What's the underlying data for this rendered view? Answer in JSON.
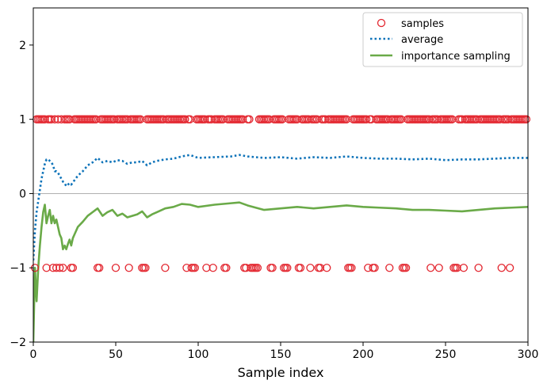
{
  "chart_data": {
    "type": "scatter",
    "title": "",
    "xlabel": "Sample index",
    "ylabel": "",
    "xlim": [
      0,
      300
    ],
    "ylim": [
      -2,
      2.5
    ],
    "xticks": [
      0,
      50,
      100,
      150,
      200,
      250,
      300
    ],
    "yticks": [
      -2,
      -1,
      0,
      1,
      2
    ],
    "grid": false,
    "hline": 0,
    "legend": {
      "position": "top-right",
      "entries": [
        {
          "label": "samples",
          "style": "circle-marker",
          "color": "#e3262f"
        },
        {
          "label": "average",
          "style": "dotted",
          "color": "#0e73b9"
        },
        {
          "label": "importance sampling",
          "style": "solid",
          "color": "#6aaa48"
        }
      ]
    },
    "series": [
      {
        "name": "samples",
        "kind": "markers",
        "color": "#e3262f",
        "points_at_plus_one": [
          2,
          3,
          4,
          5,
          6,
          7,
          9,
          10,
          11,
          13,
          15,
          17,
          19,
          20,
          21,
          22,
          25,
          26,
          27,
          28,
          29,
          30,
          31,
          32,
          33,
          34,
          35,
          36,
          37,
          38,
          41,
          42,
          43,
          44,
          45,
          46,
          47,
          48,
          49,
          51,
          52,
          53,
          54,
          55,
          56,
          57,
          59,
          60,
          61,
          62,
          63,
          64,
          65,
          69,
          70,
          71,
          72,
          73,
          74,
          75,
          76,
          77,
          78,
          79,
          81,
          82,
          83,
          84,
          85,
          86,
          87,
          88,
          89,
          90,
          91,
          92,
          94,
          95,
          99,
          100,
          101,
          102,
          103,
          104,
          106,
          107,
          108,
          110,
          111,
          112,
          113,
          114,
          115,
          118,
          119,
          120,
          121,
          122,
          123,
          124,
          125,
          126,
          127,
          130,
          131,
          137,
          138,
          139,
          140,
          141,
          142,
          143,
          146,
          147,
          148,
          149,
          150,
          151,
          155,
          156,
          157,
          158,
          159,
          160,
          163,
          164,
          165,
          166,
          167,
          169,
          170,
          171,
          172,
          175,
          176,
          177,
          179,
          180,
          181,
          182,
          183,
          184,
          185,
          186,
          187,
          188,
          189,
          190,
          194,
          195,
          196,
          197,
          198,
          199,
          200,
          201,
          202,
          204,
          205,
          208,
          209,
          210,
          211,
          212,
          213,
          214,
          215,
          217,
          218,
          219,
          220,
          221,
          222,
          223,
          227,
          228,
          229,
          230,
          231,
          232,
          233,
          234,
          235,
          236,
          237,
          238,
          239,
          240,
          242,
          243,
          244,
          245,
          247,
          248,
          249,
          250,
          251,
          252,
          253,
          254,
          258,
          259,
          260,
          262,
          263,
          264,
          265,
          266,
          267,
          268,
          269,
          271,
          272,
          273,
          274,
          275,
          276,
          277,
          278,
          279,
          280,
          281,
          282,
          283,
          285,
          286,
          287,
          288,
          290,
          291,
          292,
          293,
          294,
          295,
          296,
          297,
          298,
          299
        ],
        "points_at_minus_one": [
          1,
          8,
          12,
          14,
          16,
          18,
          23,
          24,
          39,
          40,
          50,
          58,
          66,
          67,
          68,
          80,
          93,
          96,
          97,
          98,
          105,
          109,
          116,
          117,
          128,
          129,
          132,
          133,
          134,
          135,
          136,
          144,
          145,
          152,
          153,
          154,
          161,
          162,
          168,
          173,
          174,
          178,
          191,
          192,
          193,
          203,
          206,
          207,
          216,
          224,
          225,
          226,
          241,
          246,
          255,
          256,
          257,
          261,
          270,
          284,
          289
        ]
      },
      {
        "name": "average",
        "kind": "line",
        "style": "dotted",
        "color": "#0e73b9",
        "x": [
          0,
          1,
          2,
          3,
          4,
          5,
          6,
          7,
          8,
          9,
          10,
          11,
          12,
          13,
          14,
          15,
          16,
          17,
          18,
          19,
          20,
          21,
          22,
          23,
          24,
          25,
          27,
          30,
          33,
          36,
          39,
          42,
          45,
          48,
          51,
          54,
          57,
          60,
          63,
          66,
          69,
          72,
          75,
          80,
          85,
          90,
          95,
          100,
          110,
          120,
          125,
          130,
          140,
          150,
          160,
          170,
          180,
          190,
          200,
          210,
          220,
          230,
          240,
          250,
          260,
          270,
          280,
          290,
          300
        ],
        "y": [
          -0.9,
          -0.5,
          -0.25,
          -0.1,
          0.05,
          0.2,
          0.3,
          0.4,
          0.46,
          0.46,
          0.44,
          0.42,
          0.38,
          0.3,
          0.3,
          0.28,
          0.24,
          0.2,
          0.16,
          0.14,
          0.1,
          0.12,
          0.14,
          0.12,
          0.15,
          0.18,
          0.24,
          0.3,
          0.38,
          0.42,
          0.48,
          0.42,
          0.44,
          0.42,
          0.45,
          0.44,
          0.4,
          0.42,
          0.42,
          0.44,
          0.38,
          0.42,
          0.44,
          0.46,
          0.47,
          0.5,
          0.52,
          0.48,
          0.49,
          0.5,
          0.52,
          0.5,
          0.48,
          0.49,
          0.47,
          0.49,
          0.48,
          0.5,
          0.48,
          0.47,
          0.47,
          0.46,
          0.47,
          0.45,
          0.46,
          0.46,
          0.47,
          0.48,
          0.48
        ]
      },
      {
        "name": "importance sampling",
        "kind": "line",
        "style": "solid",
        "color": "#6aaa48",
        "x": [
          0,
          1,
          2,
          3,
          4,
          5,
          6,
          7,
          8,
          9,
          10,
          11,
          12,
          13,
          14,
          15,
          16,
          17,
          18,
          19,
          20,
          21,
          22,
          23,
          24,
          25,
          27,
          30,
          33,
          36,
          39,
          42,
          45,
          48,
          51,
          54,
          57,
          60,
          63,
          66,
          69,
          72,
          75,
          80,
          85,
          90,
          95,
          100,
          110,
          120,
          125,
          130,
          140,
          150,
          160,
          170,
          180,
          190,
          200,
          210,
          220,
          230,
          240,
          250,
          260,
          270,
          280,
          290,
          300
        ],
        "y": [
          -2,
          -1.0,
          -1.45,
          -1.0,
          -0.7,
          -0.45,
          -0.25,
          -0.15,
          -0.4,
          -0.3,
          -0.22,
          -0.4,
          -0.3,
          -0.4,
          -0.35,
          -0.45,
          -0.55,
          -0.6,
          -0.75,
          -0.7,
          -0.75,
          -0.68,
          -0.62,
          -0.7,
          -0.6,
          -0.55,
          -0.45,
          -0.38,
          -0.3,
          -0.25,
          -0.2,
          -0.3,
          -0.25,
          -0.22,
          -0.3,
          -0.27,
          -0.32,
          -0.3,
          -0.28,
          -0.24,
          -0.32,
          -0.28,
          -0.25,
          -0.2,
          -0.18,
          -0.14,
          -0.15,
          -0.18,
          -0.15,
          -0.13,
          -0.12,
          -0.16,
          -0.22,
          -0.2,
          -0.18,
          -0.2,
          -0.18,
          -0.16,
          -0.18,
          -0.19,
          -0.2,
          -0.22,
          -0.22,
          -0.23,
          -0.24,
          -0.22,
          -0.2,
          -0.19,
          -0.18
        ]
      }
    ]
  }
}
